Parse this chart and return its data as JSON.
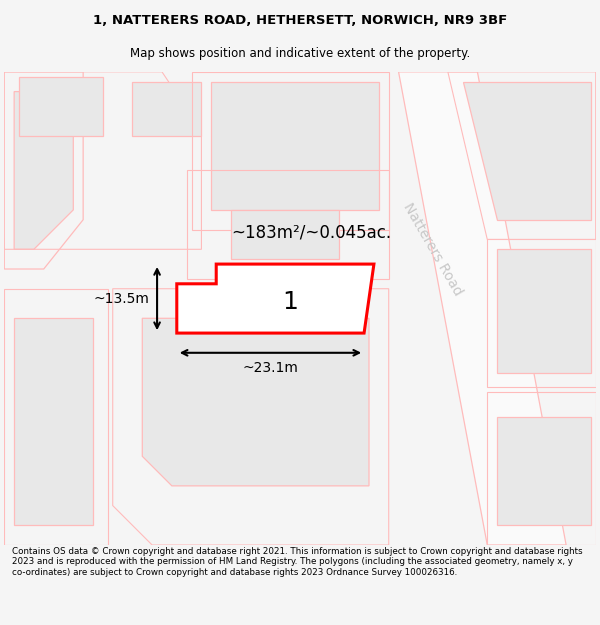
{
  "title_line1": "1, NATTERERS ROAD, HETHERSETT, NORWICH, NR9 3BF",
  "title_line2": "Map shows position and indicative extent of the property.",
  "footer_text": "Contains OS data © Crown copyright and database right 2021. This information is subject to Crown copyright and database rights 2023 and is reproduced with the permission of HM Land Registry. The polygons (including the associated geometry, namely x, y co-ordinates) are subject to Crown copyright and database rights 2023 Ordnance Survey 100026316.",
  "bg_color": "#f5f5f5",
  "map_bg": "#ffffff",
  "road_label": "Natterers Road",
  "area_label": "~183m²/~0.045ac.",
  "width_label": "~23.1m",
  "height_label": "~13.5m",
  "property_label": "1",
  "outline_color": "#ff0000",
  "parcel_color": "#ffbbbb",
  "building_color": "#e8e8e8",
  "road_text_color": "#c8c8c8"
}
